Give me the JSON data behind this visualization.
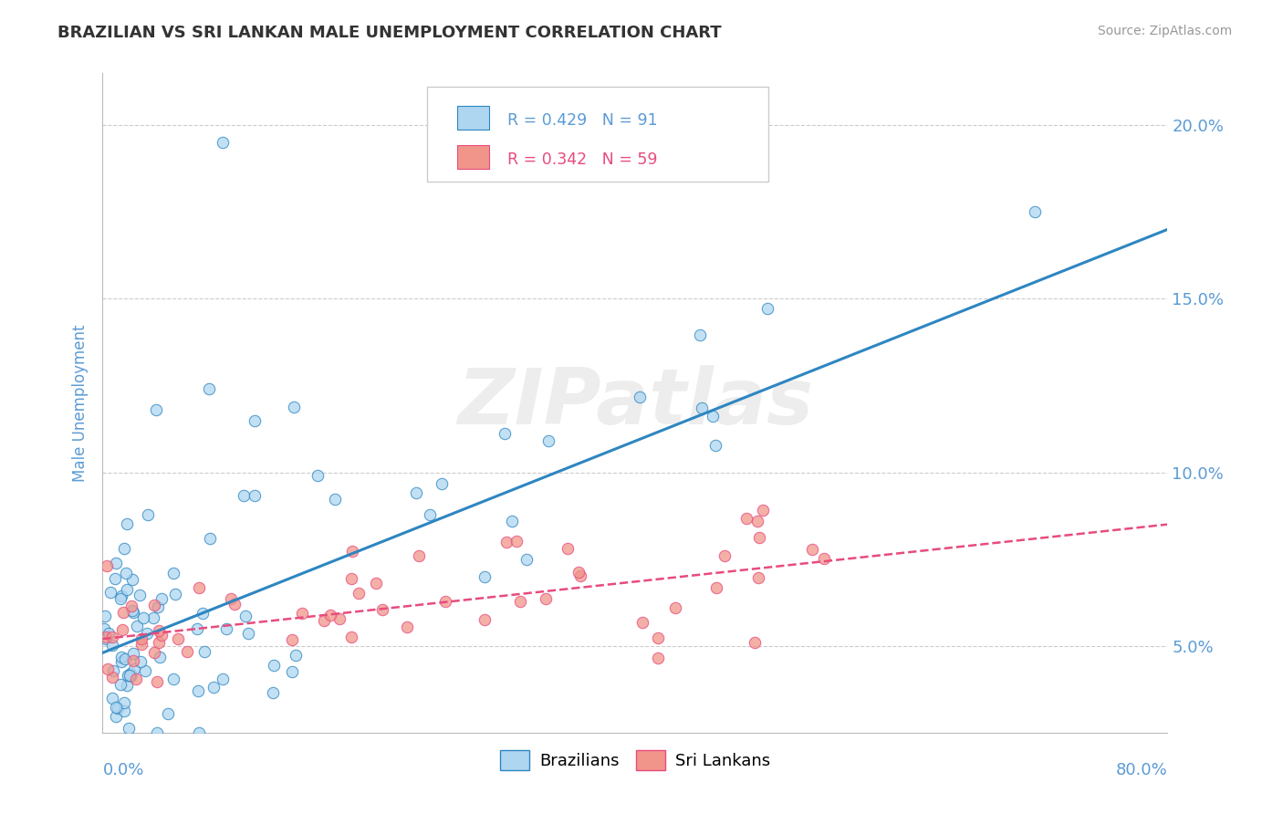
{
  "title": "BRAZILIAN VS SRI LANKAN MALE UNEMPLOYMENT CORRELATION CHART",
  "source": "Source: ZipAtlas.com",
  "ylabel": "Male Unemployment",
  "r_brazil": 0.429,
  "n_brazil": 91,
  "r_srilanka": 0.342,
  "n_srilanka": 59,
  "brazil_color": "#AED6F1",
  "srilanka_color": "#F1948A",
  "brazil_line_color": "#2E86C1",
  "srilanka_line_color": "#E74C7C",
  "ytick_labels": [
    "5.0%",
    "10.0%",
    "15.0%",
    "20.0%"
  ],
  "ytick_values": [
    0.05,
    0.1,
    0.15,
    0.2
  ],
  "xlim": [
    0.0,
    0.8
  ],
  "ylim": [
    0.025,
    0.215
  ],
  "brazil_line_start": 0.048,
  "brazil_line_end": 0.17,
  "srilanka_line_start": 0.052,
  "srilanka_line_end": 0.085,
  "watermark_text": "ZIPatlas",
  "title_color": "#333333",
  "axis_label_color": "#5B9BD5",
  "tick_label_color": "#5B9BD5",
  "background_color": "#FFFFFF",
  "grid_color": "#CCCCCC",
  "legend_label_brazil": "Brazilians",
  "legend_label_srilanka": "Sri Lankans"
}
